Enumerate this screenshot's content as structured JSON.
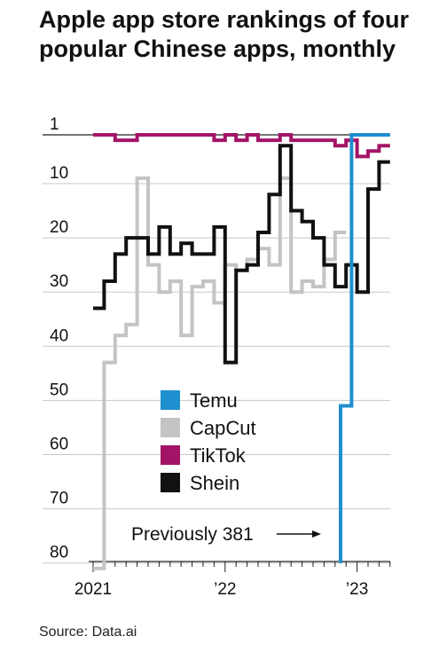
{
  "title": "Apple app store rankings of four popular Chinese apps, monthly",
  "source": "Source: Data.ai",
  "chart_data": {
    "type": "line",
    "step": true,
    "y_inverted": true,
    "title": "Apple app store rankings of four popular Chinese apps, monthly",
    "xlabel": "",
    "ylabel": "",
    "ylim": [
      1,
      81
    ],
    "y_ticks": [
      1,
      10,
      20,
      30,
      40,
      50,
      60,
      70,
      80
    ],
    "y_tick_labels": [
      "1",
      "10",
      "20",
      "30",
      "40",
      "50",
      "60",
      "70",
      "80"
    ],
    "x_tick_labels": [
      "2021",
      "’22",
      "’23"
    ],
    "x_tick_months": [
      0,
      12,
      24
    ],
    "x_range_months": [
      0,
      27
    ],
    "grid": true,
    "legend_position": "center",
    "annotations": [
      {
        "text": "Previously 381",
        "series": "Temu",
        "month": 22.5
      }
    ],
    "series": [
      {
        "name": "Temu",
        "color": "#1f8fd0",
        "points": [
          [
            22.5,
            80
          ],
          [
            22.5,
            51
          ],
          [
            23.5,
            51
          ],
          [
            23.5,
            1
          ],
          [
            27,
            1
          ]
        ]
      },
      {
        "name": "CapCut",
        "color": "#c4c4c4",
        "points": [
          [
            0,
            81
          ],
          [
            1,
            81
          ],
          [
            1,
            43
          ],
          [
            2,
            43
          ],
          [
            2,
            38
          ],
          [
            3,
            38
          ],
          [
            3,
            36
          ],
          [
            4,
            36
          ],
          [
            4,
            9
          ],
          [
            5,
            9
          ],
          [
            5,
            25
          ],
          [
            6,
            25
          ],
          [
            6,
            30
          ],
          [
            7,
            30
          ],
          [
            7,
            28
          ],
          [
            8,
            28
          ],
          [
            8,
            38
          ],
          [
            9,
            38
          ],
          [
            9,
            29
          ],
          [
            10,
            29
          ],
          [
            10,
            28
          ],
          [
            11,
            28
          ],
          [
            11,
            32
          ],
          [
            12,
            32
          ],
          [
            12,
            25
          ],
          [
            13,
            25
          ],
          [
            13,
            26
          ],
          [
            14,
            26
          ],
          [
            14,
            24
          ],
          [
            15,
            24
          ],
          [
            15,
            22
          ],
          [
            16,
            22
          ],
          [
            16,
            25
          ],
          [
            17,
            25
          ],
          [
            17,
            9
          ],
          [
            18,
            9
          ],
          [
            18,
            30
          ],
          [
            19,
            30
          ],
          [
            19,
            28
          ],
          [
            20,
            28
          ],
          [
            20,
            29
          ],
          [
            21,
            29
          ],
          [
            21,
            24
          ],
          [
            22,
            24
          ],
          [
            22,
            19
          ],
          [
            23,
            19
          ]
        ]
      },
      {
        "name": "TikTok",
        "color": "#a31467",
        "points": [
          [
            0,
            1
          ],
          [
            2,
            1
          ],
          [
            2,
            2
          ],
          [
            4,
            2
          ],
          [
            4,
            1
          ],
          [
            11,
            1
          ],
          [
            11,
            2
          ],
          [
            12,
            2
          ],
          [
            12,
            1
          ],
          [
            13,
            1
          ],
          [
            13,
            2
          ],
          [
            14,
            2
          ],
          [
            14,
            1
          ],
          [
            15,
            1
          ],
          [
            15,
            2
          ],
          [
            17,
            2
          ],
          [
            17,
            1
          ],
          [
            18,
            1
          ],
          [
            18,
            2
          ],
          [
            22,
            2
          ],
          [
            22,
            3
          ],
          [
            23,
            3
          ],
          [
            23,
            2
          ],
          [
            24,
            2
          ],
          [
            24,
            5
          ],
          [
            25,
            5
          ],
          [
            25,
            4
          ],
          [
            26,
            4
          ],
          [
            26,
            3
          ],
          [
            27,
            3
          ]
        ]
      },
      {
        "name": "Shein",
        "color": "#111111",
        "points": [
          [
            0,
            33
          ],
          [
            1,
            33
          ],
          [
            1,
            28
          ],
          [
            2,
            28
          ],
          [
            2,
            23
          ],
          [
            3,
            23
          ],
          [
            3,
            20
          ],
          [
            5,
            20
          ],
          [
            5,
            23
          ],
          [
            6,
            23
          ],
          [
            6,
            18
          ],
          [
            7,
            18
          ],
          [
            7,
            23
          ],
          [
            8,
            23
          ],
          [
            8,
            21
          ],
          [
            9,
            21
          ],
          [
            9,
            23
          ],
          [
            11,
            23
          ],
          [
            11,
            18
          ],
          [
            12,
            18
          ],
          [
            12,
            43
          ],
          [
            13,
            43
          ],
          [
            13,
            26
          ],
          [
            14,
            26
          ],
          [
            14,
            25
          ],
          [
            15,
            25
          ],
          [
            15,
            19
          ],
          [
            16,
            19
          ],
          [
            16,
            12
          ],
          [
            17,
            12
          ],
          [
            17,
            3
          ],
          [
            18,
            3
          ],
          [
            18,
            15
          ],
          [
            19,
            15
          ],
          [
            19,
            17
          ],
          [
            20,
            17
          ],
          [
            20,
            20
          ],
          [
            21,
            20
          ],
          [
            21,
            25
          ],
          [
            22,
            25
          ],
          [
            22,
            29
          ],
          [
            23,
            29
          ],
          [
            23,
            25
          ],
          [
            24,
            25
          ],
          [
            24,
            30
          ],
          [
            25,
            30
          ],
          [
            25,
            11
          ],
          [
            26,
            11
          ],
          [
            26,
            6
          ],
          [
            27,
            6
          ]
        ]
      }
    ]
  }
}
